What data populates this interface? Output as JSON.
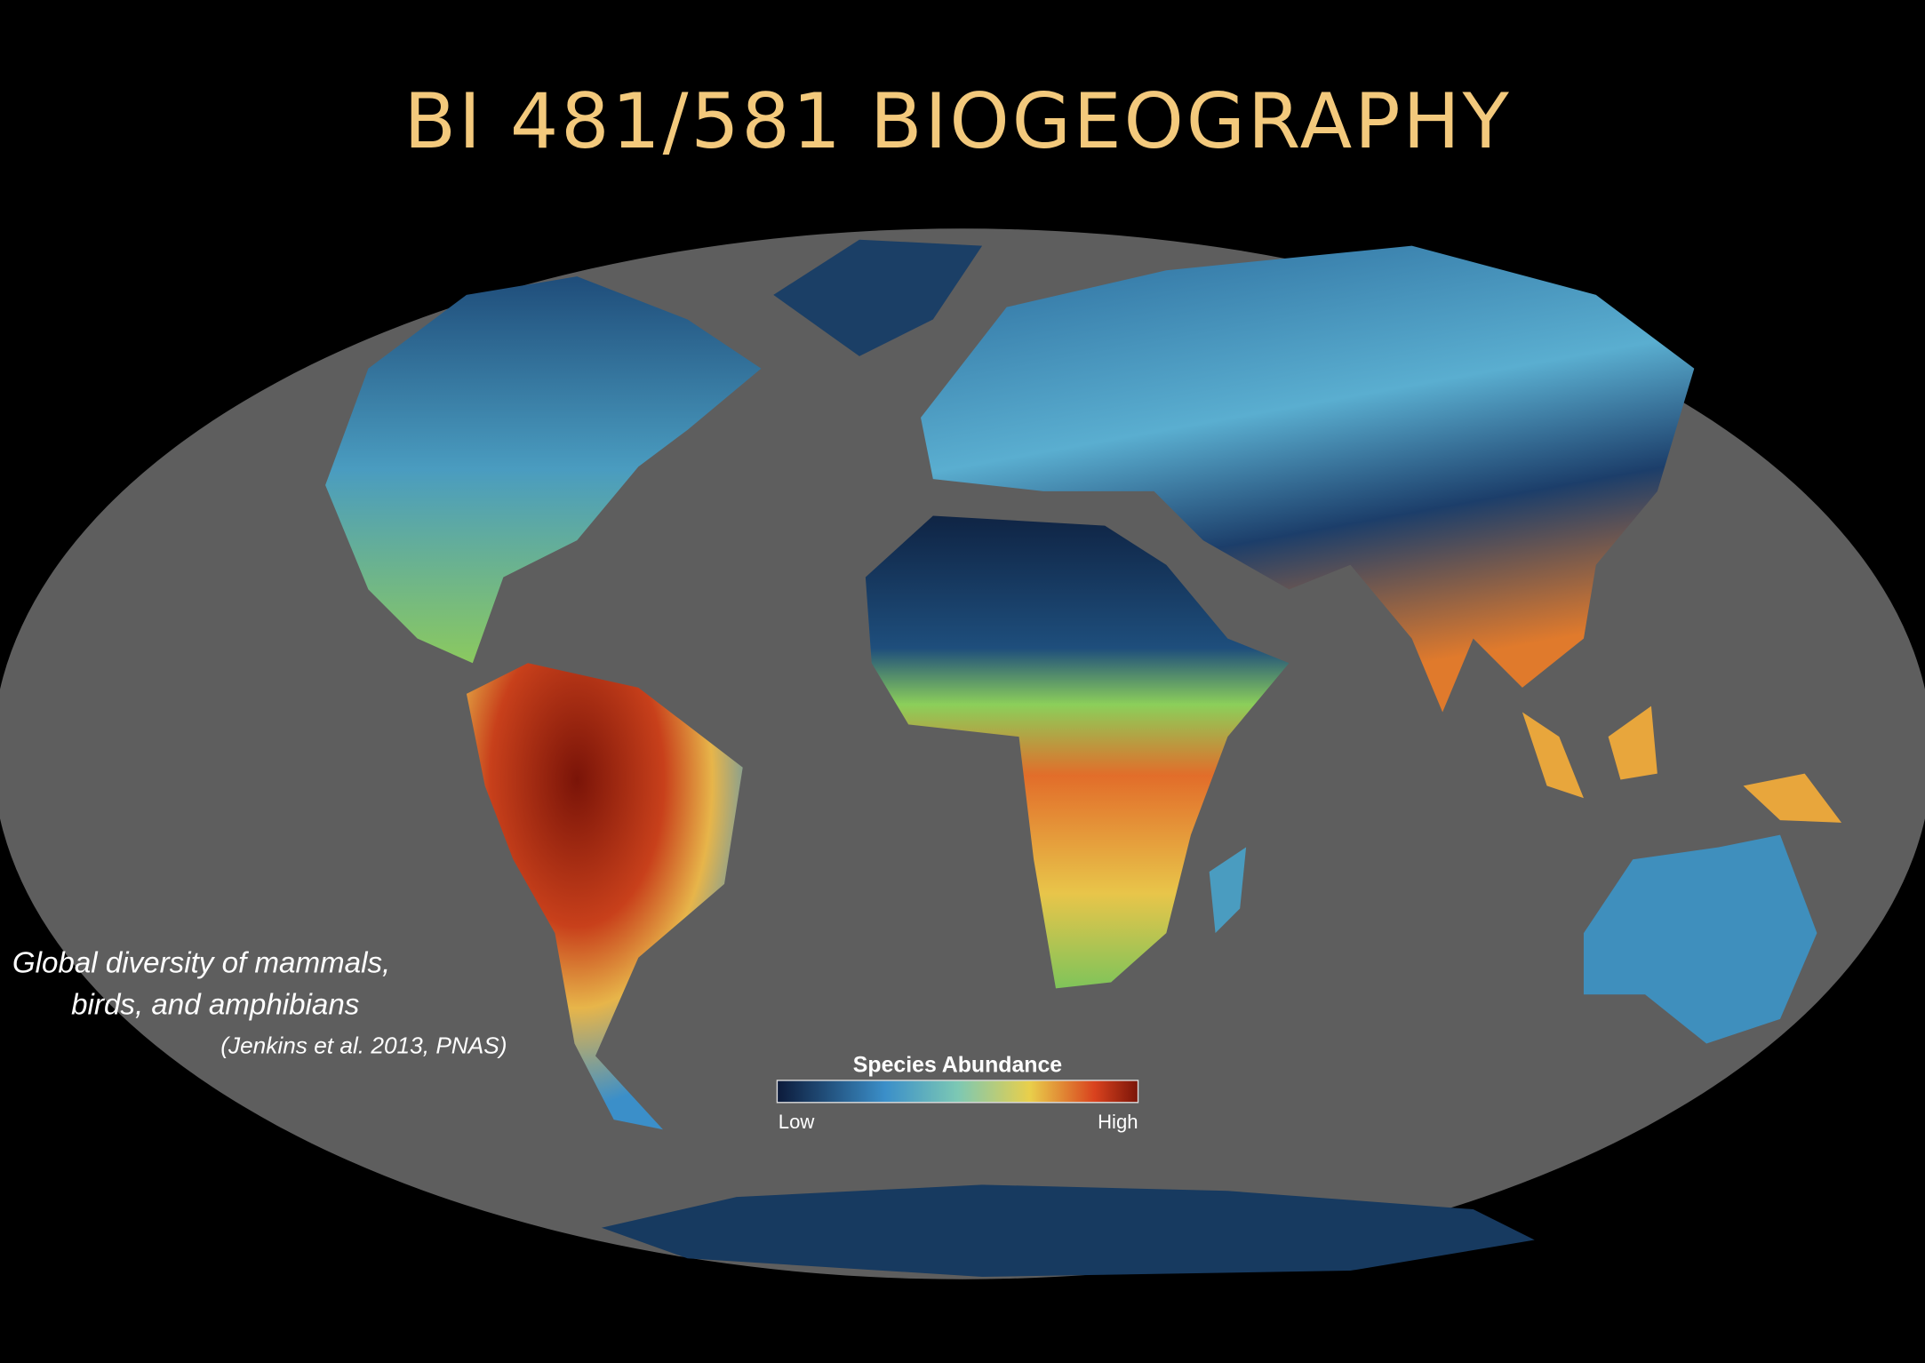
{
  "header": {
    "title": "BI 481/581 BIOGEOGRAPHY"
  },
  "caption": {
    "lines": [
      "Global diversity of mammals,",
      "birds, and amphibians"
    ],
    "citation": "(Jenkins et al. 2013, PNAS)"
  },
  "legend": {
    "title": "Species Abundance",
    "low": "Low",
    "high": "High"
  }
}
